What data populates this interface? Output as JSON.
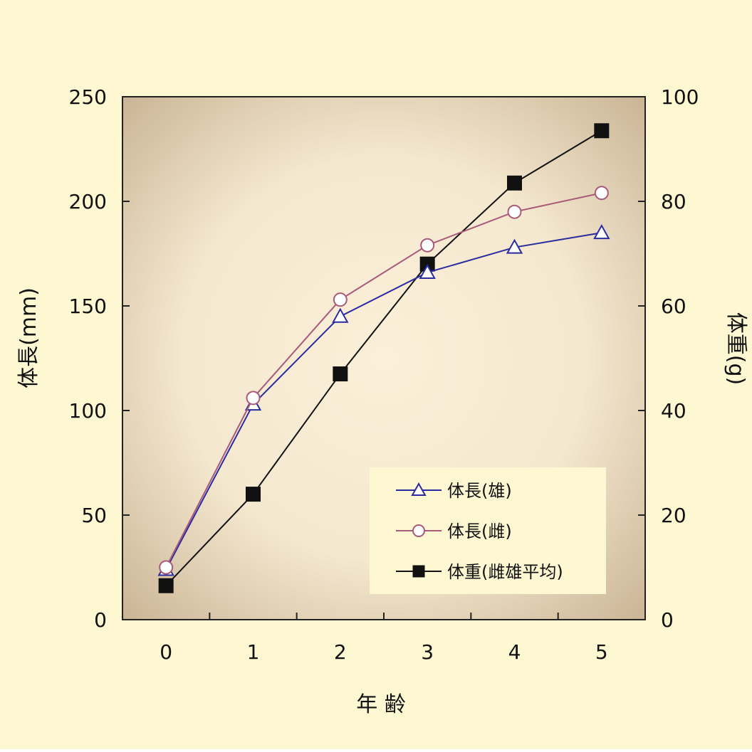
{
  "colors": {
    "frame_bg": "#fdf7d2",
    "plot_center": "#fcefd9",
    "plot_edge": "#cbb596",
    "legend_bg": "#fdf7d2",
    "series_male_length": "#2b2ba0",
    "series_female_length": "#a85a7a",
    "series_weight": "#111111"
  },
  "chart_data": {
    "type": "line",
    "xlabel": "年 齢",
    "ylabel_left": "体長(mm)",
    "ylabel_right": "体重(g)",
    "x": [
      0,
      1,
      2,
      3,
      4,
      5
    ],
    "x_ticks": [
      "0",
      "1",
      "2",
      "3",
      "4",
      "5"
    ],
    "ylim_left": [
      0,
      250
    ],
    "ylim_right": [
      0,
      100
    ],
    "y_ticks_left": [
      "0",
      "50",
      "100",
      "150",
      "200",
      "250"
    ],
    "y_ticks_right": [
      "0",
      "20",
      "40",
      "60",
      "80",
      "100"
    ],
    "grid": false,
    "legend_position": "bottom-right",
    "series": [
      {
        "name": "体長(雄)",
        "axis": "left",
        "marker": "triangle-open",
        "color_key": "series_male_length",
        "values": [
          24,
          103,
          145,
          166,
          178,
          185
        ]
      },
      {
        "name": "体長(雌)",
        "axis": "left",
        "marker": "circle-open",
        "color_key": "series_female_length",
        "values": [
          25,
          106,
          153,
          179,
          195,
          204
        ]
      },
      {
        "name": "体重(雌雄平均)",
        "axis": "right",
        "marker": "square-filled",
        "color_key": "series_weight",
        "values": [
          6.5,
          24,
          47,
          68,
          83.5,
          93.5
        ]
      }
    ]
  }
}
